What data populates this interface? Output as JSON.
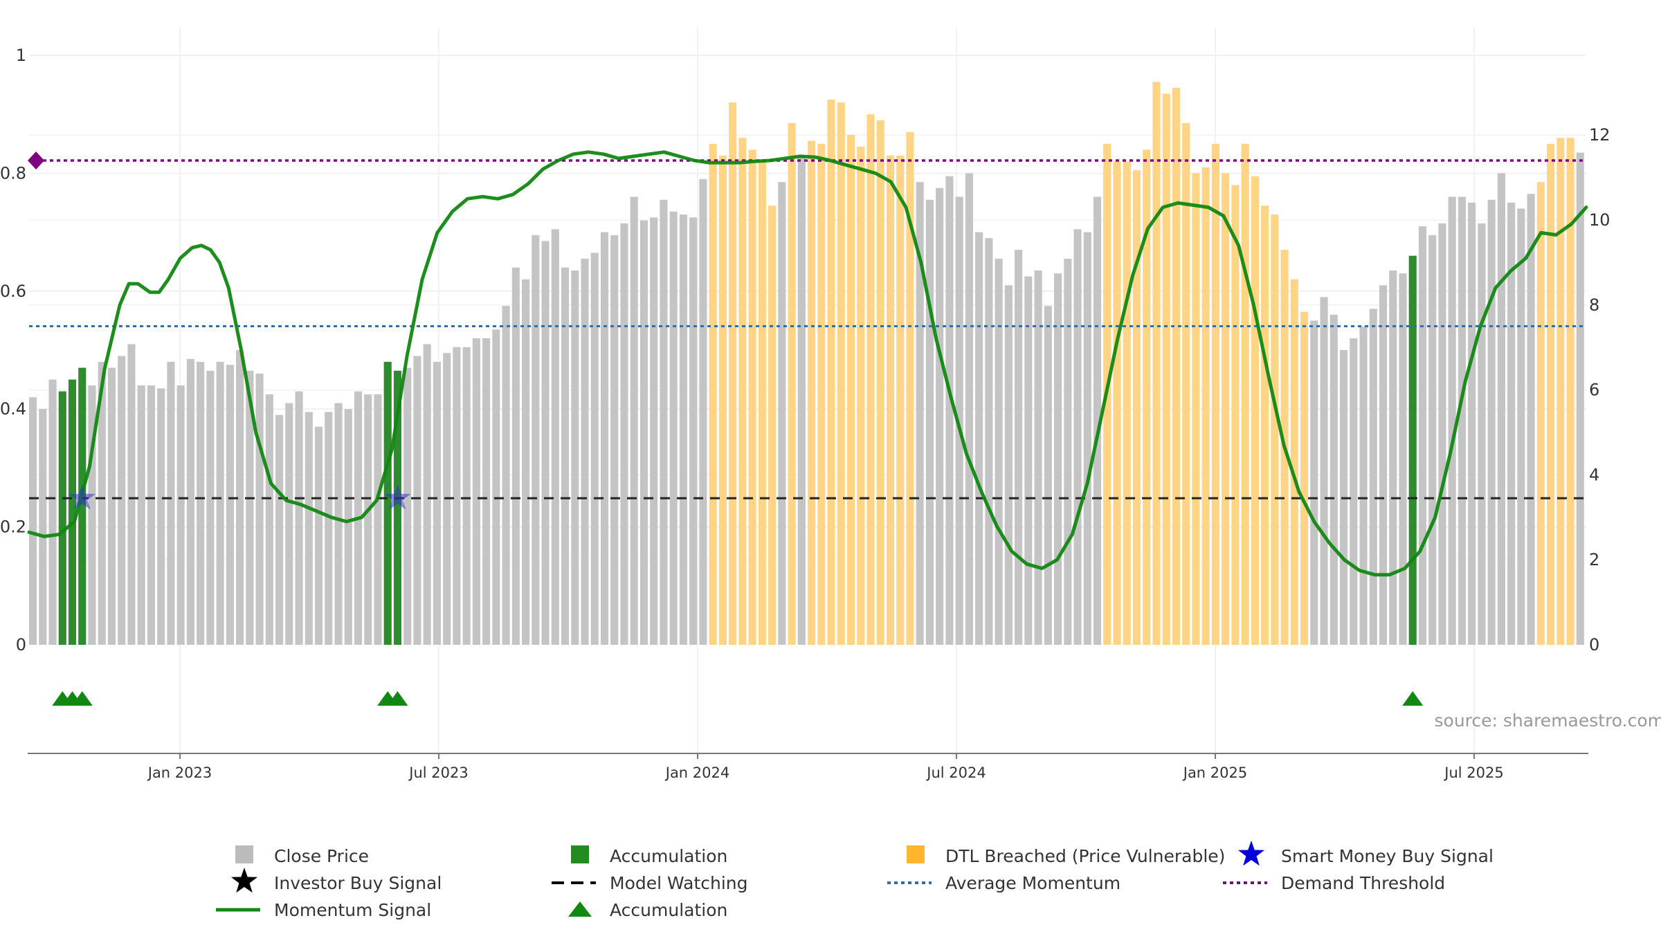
{
  "chart_data": {
    "type": "bar",
    "title": "",
    "x_axis": {
      "tick_labels": [
        "Jan 2023",
        "Jul 2023",
        "Jan 2024",
        "Jul 2024",
        "Jan 2025",
        "Jul 2025"
      ],
      "range_months": [
        0,
        35.5
      ]
    },
    "y_left": {
      "tick_labels": [
        "0",
        "0.2",
        "0.4",
        "0.6",
        "0.8",
        "1"
      ],
      "range": [
        0,
        1
      ]
    },
    "y_right": {
      "tick_labels": [
        "0",
        "2",
        "4",
        "6",
        "8",
        "10",
        "12"
      ],
      "range": [
        0,
        14
      ]
    },
    "close_price": [
      0.42,
      0.4,
      0.45,
      0.43,
      0.45,
      0.47,
      0.44,
      0.48,
      0.47,
      0.49,
      0.51,
      0.44,
      0.44,
      0.435,
      0.48,
      0.44,
      0.485,
      0.48,
      0.465,
      0.48,
      0.475,
      0.5,
      0.465,
      0.46,
      0.425,
      0.39,
      0.41,
      0.43,
      0.395,
      0.37,
      0.395,
      0.41,
      0.4,
      0.43,
      0.425,
      0.425,
      0.48,
      0.465,
      0.47,
      0.49,
      0.51,
      0.48,
      0.495,
      0.505,
      0.505,
      0.52,
      0.52,
      0.535,
      0.575,
      0.64,
      0.62,
      0.695,
      0.685,
      0.705,
      0.64,
      0.635,
      0.655,
      0.665,
      0.7,
      0.695,
      0.715,
      0.76,
      0.72,
      0.725,
      0.755,
      0.735,
      0.73,
      0.725,
      0.79,
      0.85,
      0.83,
      0.92,
      0.86,
      0.84,
      0.82,
      0.745,
      0.785,
      0.885,
      0.83,
      0.855,
      0.85,
      0.925,
      0.92,
      0.865,
      0.845,
      0.9,
      0.89,
      0.83,
      0.83,
      0.87,
      0.785,
      0.755,
      0.775,
      0.795,
      0.76,
      0.8,
      0.7,
      0.69,
      0.655,
      0.61,
      0.67,
      0.625,
      0.635,
      0.575,
      0.63,
      0.655,
      0.705,
      0.7,
      0.76,
      0.85,
      0.82,
      0.82,
      0.805,
      0.84,
      0.955,
      0.935,
      0.945,
      0.885,
      0.8,
      0.81,
      0.85,
      0.8,
      0.78,
      0.85,
      0.795,
      0.745,
      0.73,
      0.67,
      0.62,
      0.565,
      0.55,
      0.59,
      0.56,
      0.5,
      0.52,
      0.54,
      0.57,
      0.61,
      0.635,
      0.63,
      0.66,
      0.71,
      0.695,
      0.715,
      0.76,
      0.76,
      0.75,
      0.715,
      0.755,
      0.8,
      0.75,
      0.74,
      0.765,
      0.785,
      0.85,
      0.86,
      0.86,
      0.835
    ],
    "accumulation_bars": [
      3,
      4,
      5,
      36,
      37,
      140
    ],
    "dtl_breached_bars": [
      69,
      70,
      71,
      72,
      73,
      74,
      75,
      77,
      79,
      80,
      81,
      82,
      83,
      84,
      85,
      86,
      87,
      88,
      89,
      109,
      110,
      111,
      112,
      113,
      114,
      115,
      116,
      117,
      118,
      119,
      120,
      121,
      122,
      123,
      124,
      125,
      126,
      127,
      128,
      129,
      153,
      154,
      155,
      156
    ],
    "accumulation_triangles_bars": [
      3,
      4,
      5,
      36,
      37,
      140
    ],
    "smart_money_buy_signal_bars": [
      5,
      37
    ],
    "momentum_signal": [
      [
        0,
        2.65
      ],
      [
        0.5,
        2.55
      ],
      [
        1,
        2.6
      ],
      [
        1.5,
        2.9
      ],
      [
        2,
        4.2
      ],
      [
        2.5,
        6.5
      ],
      [
        3,
        8.0
      ],
      [
        3.3,
        8.5
      ],
      [
        3.6,
        8.5
      ],
      [
        4,
        8.3
      ],
      [
        4.3,
        8.3
      ],
      [
        4.6,
        8.6
      ],
      [
        5,
        9.1
      ],
      [
        5.4,
        9.35
      ],
      [
        5.7,
        9.4
      ],
      [
        6,
        9.3
      ],
      [
        6.3,
        9.0
      ],
      [
        6.6,
        8.4
      ],
      [
        7,
        7.0
      ],
      [
        7.5,
        5.0
      ],
      [
        8,
        3.8
      ],
      [
        8.5,
        3.4
      ],
      [
        9,
        3.3
      ],
      [
        9.5,
        3.15
      ],
      [
        10,
        3.0
      ],
      [
        10.5,
        2.9
      ],
      [
        11,
        3.0
      ],
      [
        11.5,
        3.4
      ],
      [
        12,
        4.6
      ],
      [
        12.5,
        6.8
      ],
      [
        13,
        8.6
      ],
      [
        13.5,
        9.7
      ],
      [
        14,
        10.2
      ],
      [
        14.5,
        10.5
      ],
      [
        15,
        10.55
      ],
      [
        15.5,
        10.5
      ],
      [
        16,
        10.6
      ],
      [
        16.5,
        10.85
      ],
      [
        17,
        11.2
      ],
      [
        17.5,
        11.4
      ],
      [
        18,
        11.55
      ],
      [
        18.5,
        11.6
      ],
      [
        19,
        11.55
      ],
      [
        19.5,
        11.45
      ],
      [
        20,
        11.5
      ],
      [
        20.5,
        11.55
      ],
      [
        21,
        11.6
      ],
      [
        21.5,
        11.5
      ],
      [
        22,
        11.4
      ],
      [
        22.5,
        11.35
      ],
      [
        23,
        11.35
      ],
      [
        23.5,
        11.35
      ],
      [
        24,
        11.38
      ],
      [
        24.5,
        11.4
      ],
      [
        25,
        11.45
      ],
      [
        25.5,
        11.5
      ],
      [
        26,
        11.48
      ],
      [
        26.5,
        11.4
      ],
      [
        27,
        11.3
      ],
      [
        27.5,
        11.2
      ],
      [
        28,
        11.1
      ],
      [
        28.5,
        10.9
      ],
      [
        29,
        10.3
      ],
      [
        29.5,
        9.0
      ],
      [
        30,
        7.2
      ],
      [
        30.5,
        5.8
      ],
      [
        31,
        4.5
      ],
      [
        31.5,
        3.6
      ],
      [
        32,
        2.8
      ],
      [
        32.5,
        2.2
      ],
      [
        33,
        1.9
      ],
      [
        33.5,
        1.8
      ],
      [
        34,
        2.0
      ],
      [
        34.5,
        2.6
      ],
      [
        35,
        3.8
      ],
      [
        35.5,
        5.5
      ],
      [
        36,
        7.2
      ],
      [
        36.5,
        8.7
      ],
      [
        37,
        9.8
      ],
      [
        37.5,
        10.3
      ],
      [
        38,
        10.4
      ],
      [
        38.5,
        10.35
      ],
      [
        39,
        10.3
      ],
      [
        39.5,
        10.1
      ],
      [
        40,
        9.4
      ],
      [
        40.5,
        8.0
      ],
      [
        41,
        6.3
      ],
      [
        41.5,
        4.7
      ],
      [
        42,
        3.6
      ],
      [
        42.5,
        2.9
      ],
      [
        43,
        2.4
      ],
      [
        43.5,
        2.0
      ],
      [
        44,
        1.75
      ],
      [
        44.5,
        1.65
      ],
      [
        45,
        1.65
      ],
      [
        45.5,
        1.8
      ],
      [
        46,
        2.2
      ],
      [
        46.5,
        3.0
      ],
      [
        47,
        4.5
      ],
      [
        47.5,
        6.2
      ],
      [
        48,
        7.5
      ],
      [
        48.5,
        8.4
      ],
      [
        49,
        8.8
      ],
      [
        49.5,
        9.1
      ],
      [
        50,
        9.7
      ],
      [
        50.5,
        9.65
      ],
      [
        51,
        9.9
      ],
      [
        51.5,
        10.3
      ]
    ],
    "model_watching_level": 3.45,
    "average_momentum_level": 7.5,
    "demand_threshold_level": 11.4,
    "legend": [
      {
        "label": "Close Price",
        "symbol": "gray-square-icon",
        "color": "#bbbbbb"
      },
      {
        "label": "Accumulation",
        "symbol": "green-square-icon",
        "color": "#228b22"
      },
      {
        "label": "DTL Breached (Price Vulnerable)",
        "symbol": "orange-square-icon",
        "color": "#ffb62e"
      },
      {
        "label": "Smart Money Buy Signal",
        "symbol": "blue-star-icon",
        "color": "#0000dd"
      },
      {
        "label": "Investor Buy Signal",
        "symbol": "black-star-icon",
        "color": "#000000"
      },
      {
        "label": "Model Watching",
        "symbol": "black-dash-line-icon",
        "color": "#000000"
      },
      {
        "label": "Average Momentum",
        "symbol": "blue-dotted-line-icon",
        "color": "#2e6fa7"
      },
      {
        "label": "Demand Threshold",
        "symbol": "purple-dotted-line-icon",
        "color": "#800080"
      },
      {
        "label": "Momentum Signal",
        "symbol": "green-line-icon",
        "color": "#118811"
      },
      {
        "label": "Accumulation",
        "symbol": "green-triangle-icon",
        "color": "#118811"
      }
    ],
    "source": "source: sharemaestro.com"
  }
}
